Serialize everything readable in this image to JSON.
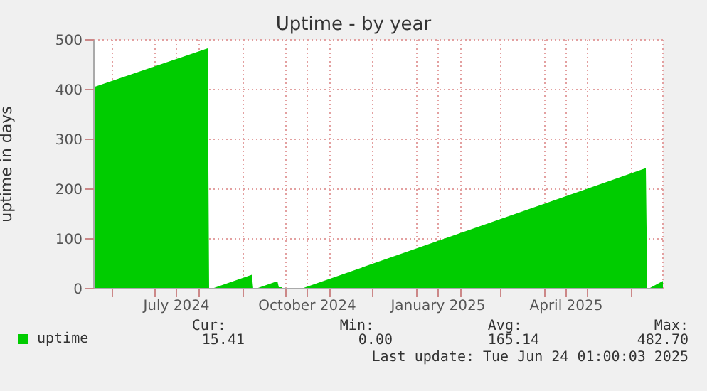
{
  "chart_data": {
    "type": "area",
    "title": "Uptime - by year",
    "ylabel": "uptime in days",
    "x": [
      "2024-05-19",
      "2024-08-07",
      "2024-08-08",
      "2024-08-10",
      "2024-09-07",
      "2024-09-08",
      "2024-09-10",
      "2024-09-25",
      "2024-09-26",
      "2024-09-28",
      "2024-09-29",
      "2024-10-12",
      "2025-06-11",
      "2025-06-12",
      "2025-06-13",
      "2025-06-23"
    ],
    "series": [
      {
        "name": "uptime",
        "color": "#00cc00",
        "values": [
          405,
          482.7,
          0,
          0,
          28,
          0,
          0,
          15,
          3,
          3,
          0,
          0,
          242,
          0,
          0,
          15.41
        ]
      }
    ],
    "xlim": [
      "2024-05-19",
      "2025-06-23"
    ],
    "xticks": [
      {
        "value": "2024-06-01",
        "label": null
      },
      {
        "value": "2024-07-01",
        "label": null
      },
      {
        "value": "2024-07-16",
        "label": "July 2024"
      },
      {
        "value": "2024-08-01",
        "label": null
      },
      {
        "value": "2024-09-01",
        "label": null
      },
      {
        "value": "2024-10-01",
        "label": null
      },
      {
        "value": "2024-10-16",
        "label": "October 2024"
      },
      {
        "value": "2024-11-01",
        "label": null
      },
      {
        "value": "2024-12-01",
        "label": null
      },
      {
        "value": "2025-01-01",
        "label": null
      },
      {
        "value": "2025-01-16",
        "label": "January 2025"
      },
      {
        "value": "2025-02-01",
        "label": null
      },
      {
        "value": "2025-03-01",
        "label": null
      },
      {
        "value": "2025-04-01",
        "label": null
      },
      {
        "value": "2025-04-16",
        "label": "April 2025"
      },
      {
        "value": "2025-05-01",
        "label": null
      },
      {
        "value": "2025-06-01",
        "label": null
      }
    ],
    "ylim": [
      0,
      500
    ],
    "yticks": [
      0,
      100,
      200,
      300,
      400,
      500
    ],
    "grid": true,
    "legend": "bottom left",
    "annotations": [
      "Cur:",
      "Min:",
      "Avg:",
      "Max:",
      "15.41",
      "0.00",
      "165.14",
      "482.70",
      "Last update: Tue Jun 24 01:00:03 2025"
    ]
  }
}
